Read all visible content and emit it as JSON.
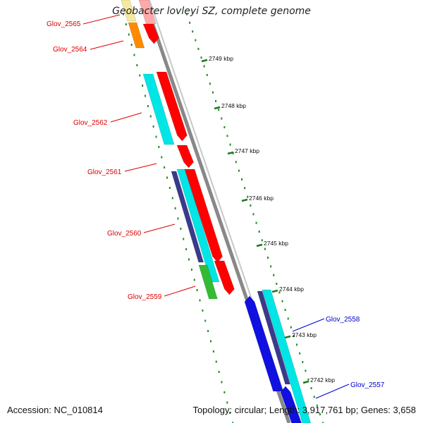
{
  "title": "Geobacter lovleyi SZ, complete genome",
  "footer": {
    "accession": "Accession: NC_010814",
    "summary": "Topology: circular; Length: 3,917,761 bp; Genes: 3,658"
  },
  "colors": {
    "forward_gene": "#ff0000",
    "reverse_gene": "#1010e0",
    "cds_cyan": "#00e5e5",
    "cds_navy": "#3a3a8c",
    "cds_orange": "#ff8c00",
    "cds_green": "#33bb33",
    "cds_yellow": "#f5e9a0",
    "backbone": "#888888",
    "gc_dots": "#228b22",
    "label_forward": "#dd0000",
    "label_reverse": "#0000cc"
  },
  "ticks": [
    "2749 kbp",
    "2748 kbp",
    "2747 kbp",
    "2746 kbp",
    "2745 kbp",
    "2744 kbp",
    "2743 kbp",
    "2742 kbp"
  ],
  "gene_labels": [
    {
      "text": "Glov_2565",
      "strand": "forward"
    },
    {
      "text": "Glov_2564",
      "strand": "forward"
    },
    {
      "text": "Glov_2562",
      "strand": "forward"
    },
    {
      "text": "Glov_2561",
      "strand": "forward"
    },
    {
      "text": "Glov_2560",
      "strand": "forward"
    },
    {
      "text": "Glov_2559",
      "strand": "forward"
    },
    {
      "text": "Glov_2558",
      "strand": "reverse"
    },
    {
      "text": "Glov_2557",
      "strand": "reverse"
    }
  ]
}
